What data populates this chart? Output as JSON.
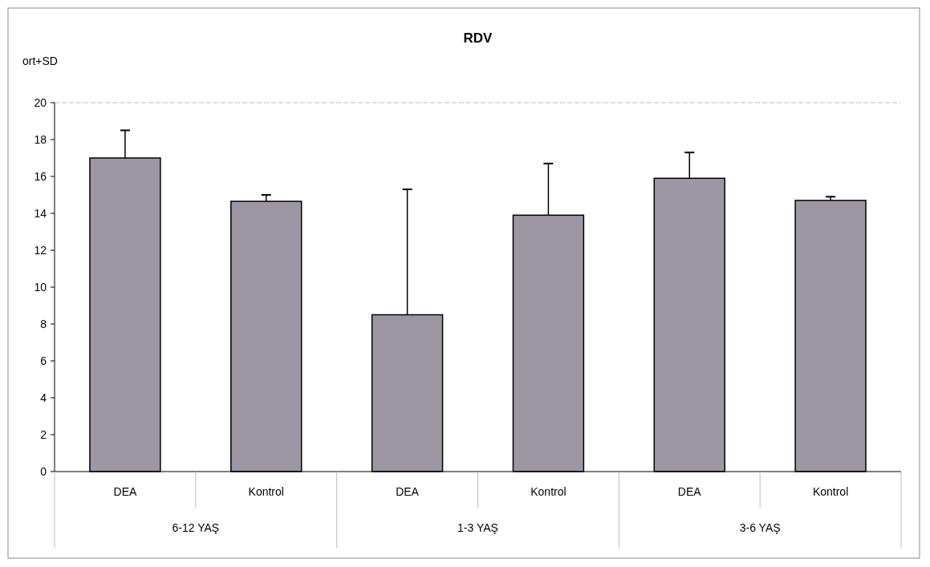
{
  "chart_data": {
    "type": "bar",
    "title": "RDV",
    "ylabel": "ort+SD",
    "categories": [
      "DEA",
      "Kontrol",
      "DEA",
      "Kontrol",
      "DEA",
      "Kontrol"
    ],
    "values": [
      17.0,
      14.65,
      8.5,
      13.9,
      15.9,
      14.7
    ],
    "errors": [
      [
        17.0,
        18.5
      ],
      [
        14.65,
        15.0
      ],
      [
        8.5,
        15.3
      ],
      [
        13.9,
        16.7
      ],
      [
        15.9,
        17.3
      ],
      [
        14.7,
        14.9
      ]
    ],
    "color": "#9c97a3",
    "ylim": [
      0,
      20
    ],
    "yticks": [
      0,
      2,
      4,
      6,
      8,
      10,
      12,
      14,
      16,
      18,
      20
    ],
    "annotations": [
      "6-12 YAŞ",
      "1-3 YAŞ",
      "3-6 YAŞ"
    ],
    "grid": false
  }
}
